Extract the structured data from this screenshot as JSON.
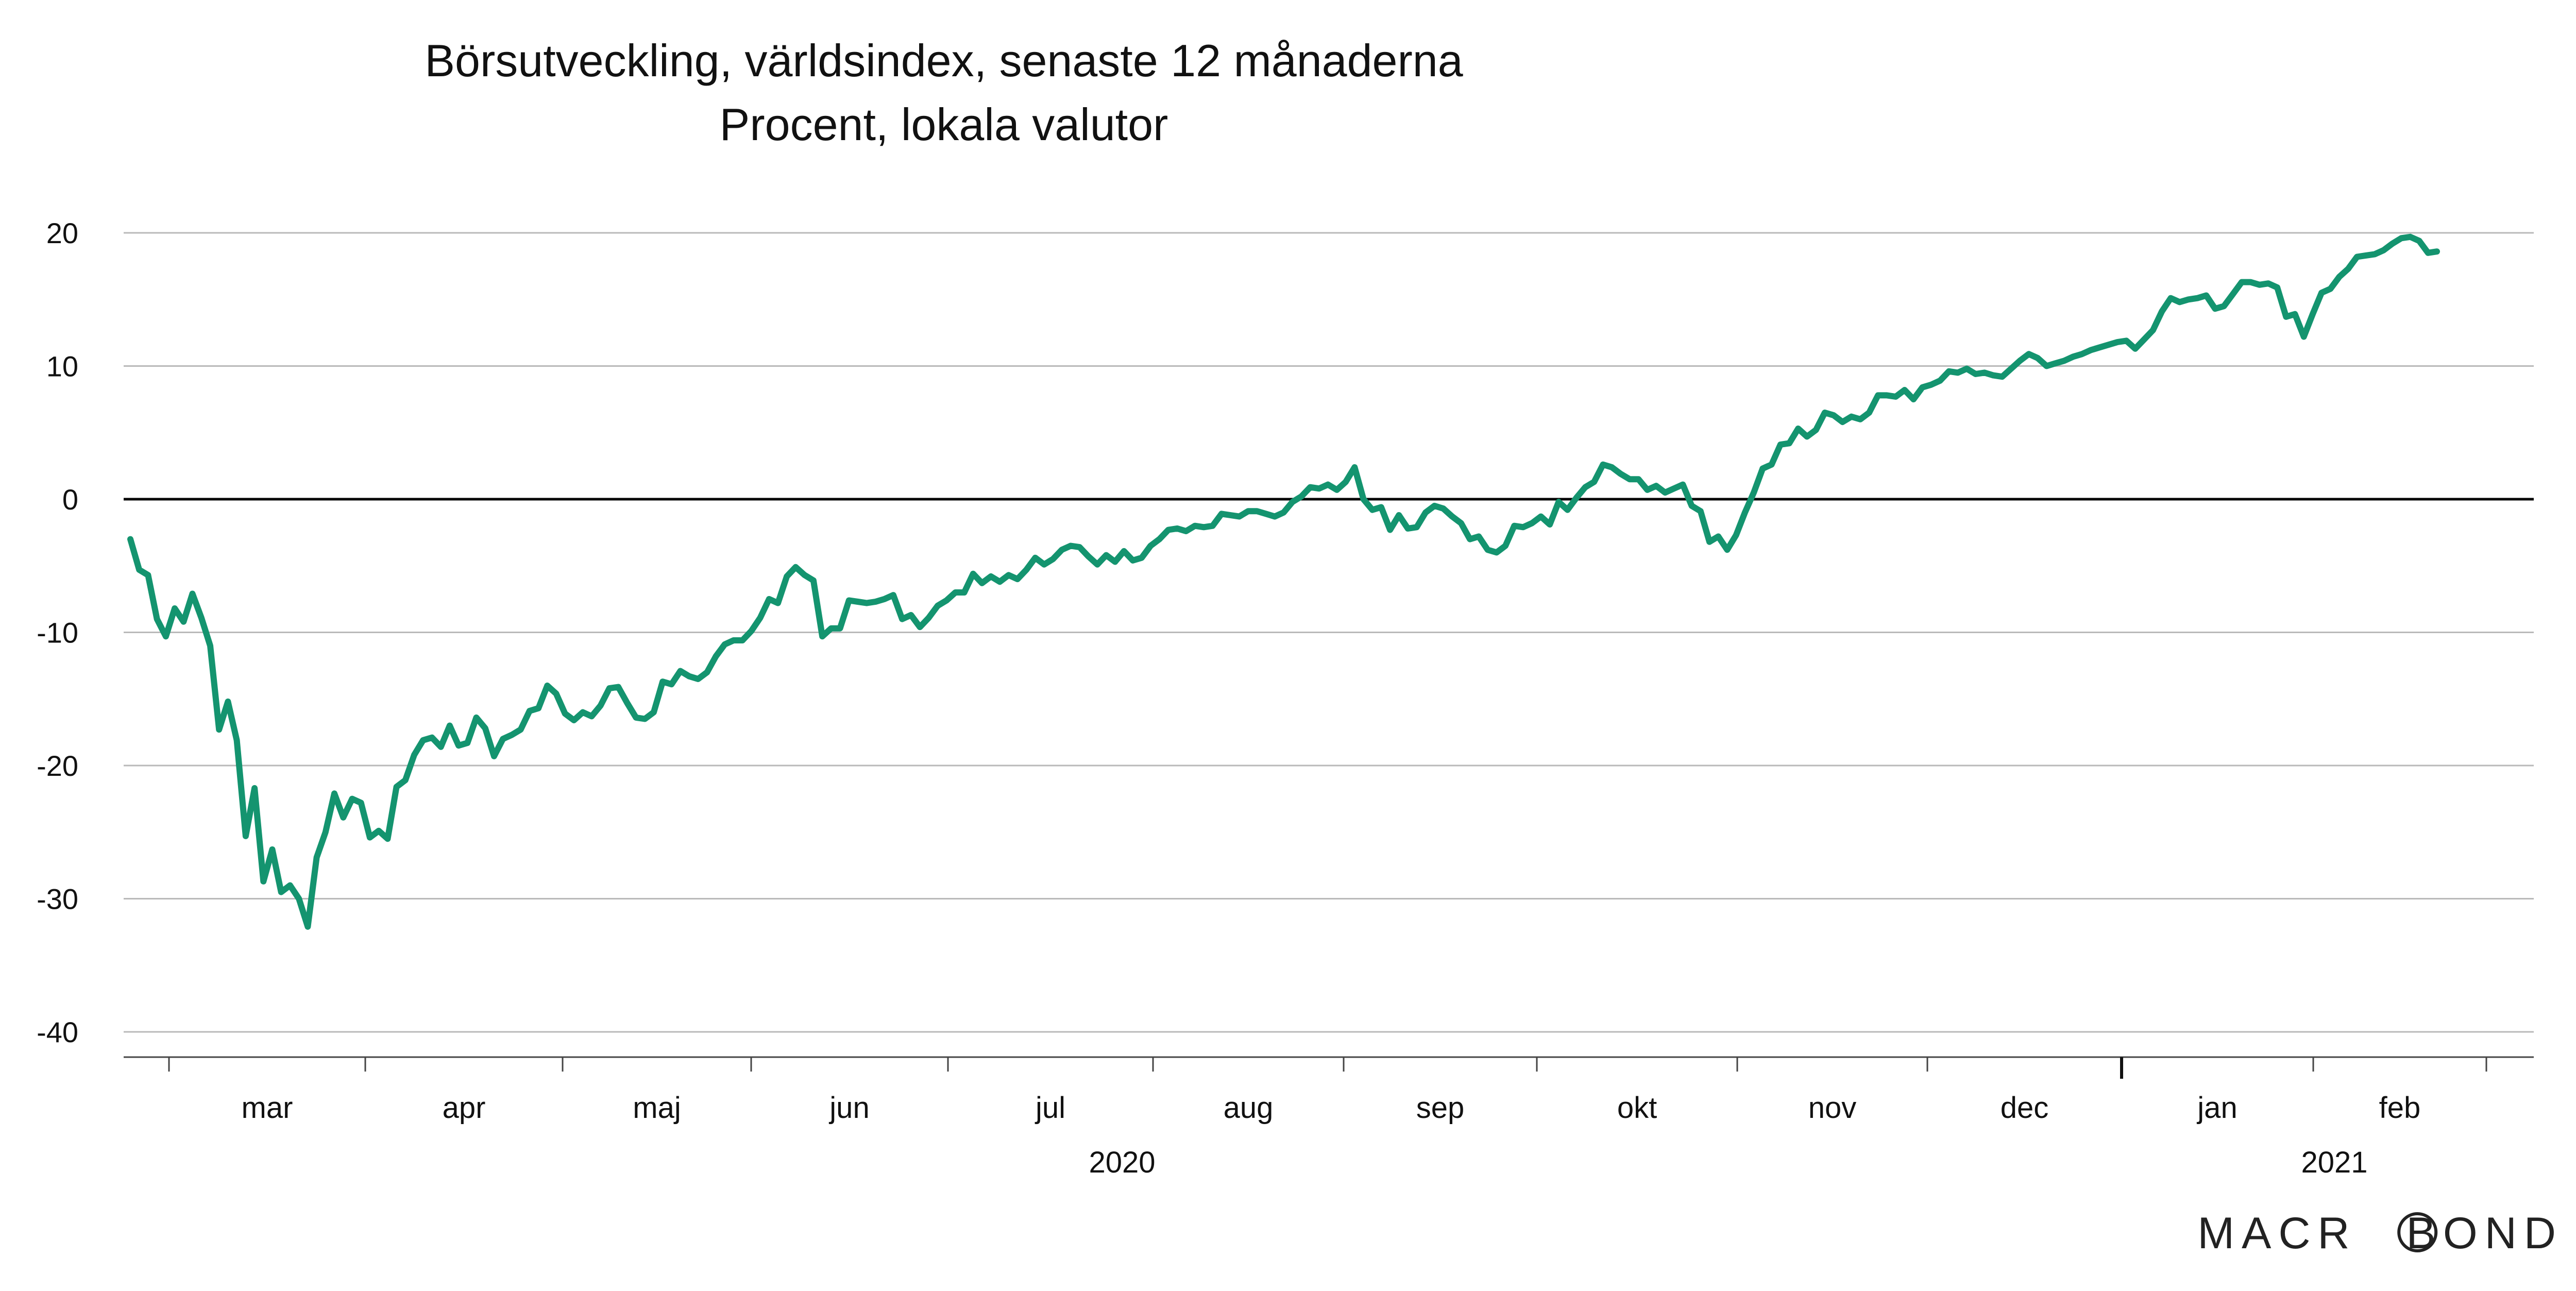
{
  "chart_data": {
    "type": "line",
    "title": "Börsutveckling, världsindex, senaste 12 månaderna",
    "subtitle": "Procent, lokala valutor",
    "xlabel": "",
    "ylabel": "",
    "ylim": [
      -40,
      20
    ],
    "yticks": [
      20,
      10,
      0,
      -10,
      -20,
      -30,
      -40
    ],
    "ytick_labels": [
      "20",
      "10",
      "0",
      "-10",
      "-20",
      "-30",
      "-40"
    ],
    "grid": true,
    "legend": "none",
    "line_color": "#14946f",
    "months": [
      "mar",
      "apr",
      "maj",
      "jun",
      "jul",
      "aug",
      "sep",
      "okt",
      "nov",
      "dec",
      "jan",
      "feb"
    ],
    "years": [
      "2020",
      "2021"
    ],
    "logo": "MACROBOND",
    "series": [
      {
        "values": [
          -3,
          -5.3,
          -5.7,
          -9,
          -10.3,
          -8.2,
          -9.2,
          -7.1,
          -8.9,
          -11,
          -17.3,
          -15.2,
          -18.1,
          -25.3,
          -21.7,
          -28.7,
          -26.3,
          -29.5,
          -29,
          -30,
          -32.1,
          -26.9,
          -25,
          -22.1,
          -23.9,
          -22.5,
          -22.8,
          -25.4,
          -24.9,
          -25.5,
          -21.6,
          -21.1,
          -19.2,
          -18.1,
          -17.9,
          -18.6,
          -17,
          -18.5,
          -18.3,
          -16.4,
          -17.2,
          -19.3,
          -18,
          -17.7,
          -17.3,
          -15.9,
          -15.7,
          -14,
          -14.6,
          -16.1,
          -16.6,
          -16,
          -16.3,
          -15.5,
          -14.2,
          -14.1,
          -15.3,
          -16.4,
          -16.5,
          -16,
          -13.7,
          -13.9,
          -12.9,
          -13.3,
          -13.5,
          -13,
          -11.8,
          -10.9,
          -10.6,
          -10.6,
          -9.9,
          -8.9,
          -7.5,
          -7.8,
          -5.8,
          -5.1,
          -5.7,
          -6.1,
          -10.3,
          -9.7,
          -9.7,
          -7.6,
          -7.7,
          -7.8,
          -7.7,
          -7.5,
          -7.2,
          -9,
          -8.7,
          -9.6,
          -8.9,
          -8,
          -7.6,
          -7,
          -7,
          -5.6,
          -6.3,
          -5.8,
          -6.2,
          -5.7,
          -6,
          -5.3,
          -4.4,
          -4.9,
          -4.5,
          -3.8,
          -3.5,
          -3.6,
          -4.3,
          -4.9,
          -4.2,
          -4.7,
          -3.9,
          -4.6,
          -4.4,
          -3.5,
          -3,
          -2.3,
          -2.2,
          -2.4,
          -2,
          -2.1,
          -2,
          -1.1,
          -1.2,
          -1.3,
          -0.9,
          -0.9,
          -1.1,
          -1.3,
          -1,
          -0.2,
          0.2,
          0.9,
          0.8,
          1.1,
          0.7,
          1.3,
          2.4,
          0,
          -0.8,
          -0.6,
          -2.3,
          -1.2,
          -2.2,
          -2.1,
          -1,
          -0.5,
          -0.7,
          -1.3,
          -1.8,
          -3,
          -2.8,
          -3.8,
          -4,
          -3.5,
          -2,
          -2.1,
          -1.8,
          -1.3,
          -1.9,
          -0.2,
          -0.8,
          0.1,
          0.9,
          1.3,
          2.6,
          2.4,
          1.9,
          1.5,
          1.5,
          0.7,
          1,
          0.5,
          0.8,
          1.1,
          -0.5,
          -0.9,
          -3.2,
          -2.8,
          -3.8,
          -2.7,
          -1,
          0.5,
          2.3,
          2.6,
          4.1,
          4.2,
          5.3,
          4.7,
          5.2,
          6.5,
          6.3,
          5.8,
          6.2,
          6,
          6.5,
          7.8,
          7.8,
          7.7,
          8.2,
          7.5,
          8.4,
          8.6,
          8.9,
          9.6,
          9.5,
          9.8,
          9.4,
          9.5,
          9.3,
          9.2,
          9.8,
          10.4,
          10.9,
          10.6,
          10,
          10.2,
          10.4,
          10.7,
          10.9,
          11.2,
          11.4,
          11.6,
          11.8,
          11.9,
          11.3,
          12,
          12.7,
          14.1,
          15.1,
          14.8,
          15,
          15.1,
          15.3,
          14.3,
          14.5,
          15.4,
          16.3,
          16.3,
          16.1,
          16.2,
          15.9,
          13.7,
          13.9,
          12.2,
          13.9,
          15.5,
          15.8,
          16.7,
          17.3,
          18.2,
          18.3,
          18.4,
          18.7,
          19.2,
          19.6,
          19.7,
          19.4,
          18.5,
          18.6
        ]
      }
    ]
  }
}
